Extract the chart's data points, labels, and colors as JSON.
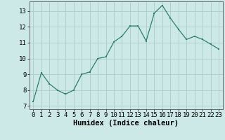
{
  "x": [
    0,
    1,
    2,
    3,
    4,
    5,
    6,
    7,
    8,
    9,
    10,
    11,
    12,
    13,
    14,
    15,
    16,
    17,
    18,
    19,
    20,
    21,
    22,
    23
  ],
  "y": [
    7.3,
    9.1,
    8.4,
    8.0,
    7.75,
    8.0,
    9.0,
    9.15,
    10.0,
    10.1,
    11.05,
    11.4,
    12.05,
    12.05,
    11.1,
    12.85,
    13.35,
    12.55,
    11.85,
    11.2,
    11.4,
    11.2,
    10.9,
    10.6
  ],
  "xlabel": "Humidex (Indice chaleur)",
  "xlim": [
    -0.5,
    23.5
  ],
  "ylim": [
    6.8,
    13.6
  ],
  "yticks": [
    7,
    8,
    9,
    10,
    11,
    12,
    13
  ],
  "xticks": [
    0,
    1,
    2,
    3,
    4,
    5,
    6,
    7,
    8,
    9,
    10,
    11,
    12,
    13,
    14,
    15,
    16,
    17,
    18,
    19,
    20,
    21,
    22,
    23
  ],
  "line_color": "#2e7d6e",
  "marker_color": "#2e7d6e",
  "bg_color": "#cce9e7",
  "grid_color": "#aaccca",
  "tick_fontsize": 6.5,
  "label_fontsize": 7.5
}
